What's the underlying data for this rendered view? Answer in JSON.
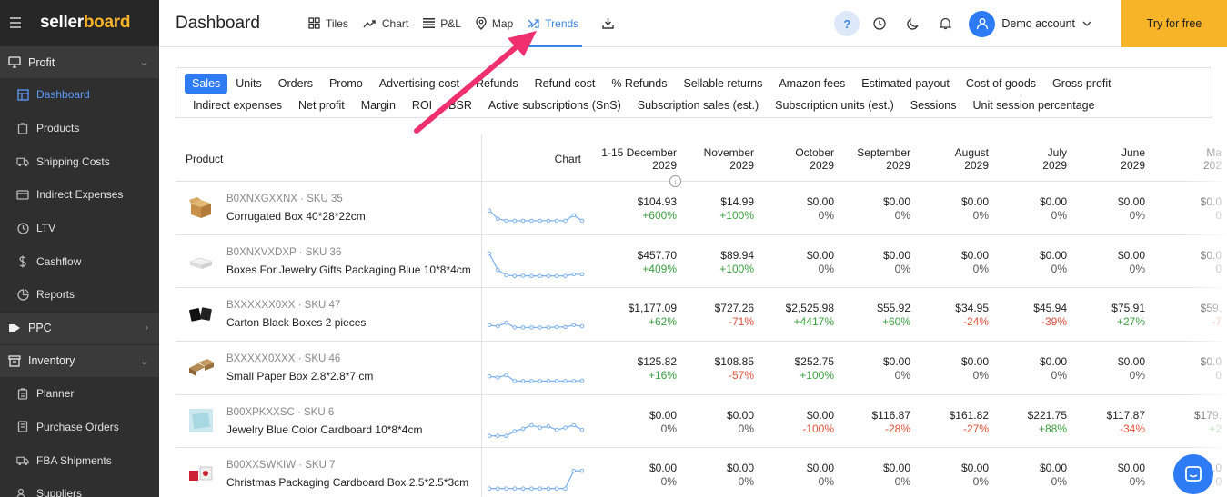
{
  "brand": {
    "logo_a": "seller",
    "logo_b": "board"
  },
  "sidebar": {
    "items": [
      {
        "type": "group",
        "label": "Profit",
        "icon": "monitor-icon",
        "chev": "⌄"
      },
      {
        "type": "item",
        "label": "Dashboard",
        "icon": "dashboard-icon",
        "active": true
      },
      {
        "type": "item",
        "label": "Products",
        "icon": "products-icon"
      },
      {
        "type": "item",
        "label": "Shipping Costs",
        "icon": "truck-icon"
      },
      {
        "type": "item",
        "label": "Indirect Expenses",
        "icon": "card-icon"
      },
      {
        "type": "item",
        "label": "LTV",
        "icon": "clock-icon"
      },
      {
        "type": "item",
        "label": "Cashflow",
        "icon": "dollar-icon"
      },
      {
        "type": "item",
        "label": "Reports",
        "icon": "reports-icon"
      },
      {
        "type": "group",
        "label": "PPC",
        "icon": "tag-icon",
        "chev": "›"
      },
      {
        "type": "group",
        "label": "Inventory",
        "icon": "inventory-icon",
        "chev": "⌄"
      },
      {
        "type": "item",
        "label": "Planner",
        "icon": "planner-icon"
      },
      {
        "type": "item",
        "label": "Purchase Orders",
        "icon": "orders-icon"
      },
      {
        "type": "item",
        "label": "FBA Shipments",
        "icon": "shipment-icon"
      },
      {
        "type": "item",
        "label": "Suppliers",
        "icon": "suppliers-icon"
      }
    ]
  },
  "header": {
    "title": "Dashboard",
    "tabs": [
      {
        "label": "Tiles",
        "icon": "tiles-icon"
      },
      {
        "label": "Chart",
        "icon": "chart-icon"
      },
      {
        "label": "P&L",
        "icon": "list-icon"
      },
      {
        "label": "Map",
        "icon": "map-pin-icon"
      },
      {
        "label": "Trends",
        "icon": "trends-icon",
        "active": true
      }
    ],
    "help": "?",
    "account": "Demo account",
    "try_label": "Try for free"
  },
  "metrics": {
    "row1": [
      "Sales",
      "Units",
      "Orders",
      "Promo",
      "Advertising cost",
      "Refunds",
      "Refund cost",
      "% Refunds",
      "Sellable returns",
      "Amazon fees",
      "Estimated payout",
      "Cost of goods",
      "Gross profit"
    ],
    "row2": [
      "Indirect expenses",
      "Net profit",
      "Margin",
      "ROI",
      "BSR",
      "Active subscriptions (SnS)",
      "Subscription sales (est.)",
      "Subscription units (est.)",
      "Sessions",
      "Unit session percentage"
    ],
    "active": "Sales"
  },
  "table": {
    "product_header": "Product",
    "chart_header": "Chart",
    "columns": [
      {
        "l1": "1-15 December",
        "l2": "2029"
      },
      {
        "l1": "November",
        "l2": "2029"
      },
      {
        "l1": "October",
        "l2": "2029"
      },
      {
        "l1": "September",
        "l2": "2029"
      },
      {
        "l1": "August",
        "l2": "2029"
      },
      {
        "l1": "July",
        "l2": "2029"
      },
      {
        "l1": "June",
        "l2": "2029"
      },
      {
        "l1": "Ma",
        "l2": "202"
      }
    ],
    "rows": [
      {
        "meta": "B0XNXGXXNX · SKU 35",
        "name": "Corrugated Box 40*28*22cm",
        "img": "box",
        "spark": [
          0.55,
          0.2,
          0.12,
          0.12,
          0.12,
          0.12,
          0.12,
          0.12,
          0.12,
          0.12,
          0.35,
          0.12
        ],
        "cells": [
          [
            "$104.93",
            "+600%"
          ],
          [
            "$14.99",
            "+100%"
          ],
          [
            "$0.00",
            "0%"
          ],
          [
            "$0.00",
            "0%"
          ],
          [
            "$0.00",
            "0%"
          ],
          [
            "$0.00",
            "0%"
          ],
          [
            "$0.00",
            "0%"
          ],
          [
            "$0.0",
            "0"
          ]
        ]
      },
      {
        "meta": "B0XNXVXDXP · SKU 36",
        "name": "Boxes For Jewelry Gifts Packaging Blue 10*8*4cm",
        "img": "white",
        "spark": [
          1.0,
          0.3,
          0.08,
          0.05,
          0.06,
          0.05,
          0.05,
          0.05,
          0.05,
          0.05,
          0.12,
          0.12
        ],
        "cells": [
          [
            "$457.70",
            "+409%"
          ],
          [
            "$89.94",
            "+100%"
          ],
          [
            "$0.00",
            "0%"
          ],
          [
            "$0.00",
            "0%"
          ],
          [
            "$0.00",
            "0%"
          ],
          [
            "$0.00",
            "0%"
          ],
          [
            "$0.00",
            "0%"
          ],
          [
            "$0.0",
            "0"
          ]
        ]
      },
      {
        "meta": "BXXXXXX0XX · SKU 47",
        "name": "Carton Black Boxes 2 pieces",
        "img": "black",
        "spark": [
          0.2,
          0.15,
          0.3,
          0.1,
          0.1,
          0.1,
          0.1,
          0.1,
          0.12,
          0.12,
          0.2,
          0.15
        ],
        "cells": [
          [
            "$1,177.09",
            "+62%"
          ],
          [
            "$727.26",
            "-71%"
          ],
          [
            "$2,525.98",
            "+4417%"
          ],
          [
            "$55.92",
            "+60%"
          ],
          [
            "$34.95",
            "-24%"
          ],
          [
            "$45.94",
            "-39%"
          ],
          [
            "$75.91",
            "+27%"
          ],
          [
            "$59.",
            "-7"
          ]
        ]
      },
      {
        "meta": "BXXXXX0XXX · SKU 46",
        "name": "Small Paper Box 2.8*2.8*7 cm",
        "img": "kraft",
        "spark": [
          0.3,
          0.25,
          0.35,
          0.1,
          0.1,
          0.1,
          0.1,
          0.1,
          0.1,
          0.1,
          0.1,
          0.12
        ],
        "cells": [
          [
            "$125.82",
            "+16%"
          ],
          [
            "$108.85",
            "-57%"
          ],
          [
            "$252.75",
            "+100%"
          ],
          [
            "$0.00",
            "0%"
          ],
          [
            "$0.00",
            "0%"
          ],
          [
            "$0.00",
            "0%"
          ],
          [
            "$0.00",
            "0%"
          ],
          [
            "$0.0",
            "0"
          ]
        ]
      },
      {
        "meta": "B00XPKXXSC · SKU 6",
        "name": "Jewelry Blue Color Cardboard 10*8*4cm",
        "img": "blue",
        "spark": [
          0.05,
          0.05,
          0.05,
          0.25,
          0.35,
          0.5,
          0.4,
          0.45,
          0.3,
          0.4,
          0.5,
          0.3
        ],
        "cells": [
          [
            "$0.00",
            "0%"
          ],
          [
            "$0.00",
            "0%"
          ],
          [
            "$0.00",
            "-100%"
          ],
          [
            "$116.87",
            "-28%"
          ],
          [
            "$161.82",
            "-27%"
          ],
          [
            "$221.75",
            "+88%"
          ],
          [
            "$117.87",
            "-34%"
          ],
          [
            "$179.",
            "+2"
          ]
        ]
      },
      {
        "meta": "B00XXSWKIW · SKU 7",
        "name": "Christmas Packaging Cardboard Box 2.5*2.5*3cm",
        "img": "xmas",
        "spark": [
          0.05,
          0.05,
          0.05,
          0.05,
          0.05,
          0.05,
          0.05,
          0.05,
          0.05,
          0.05,
          0.8,
          0.8
        ],
        "cells": [
          [
            "$0.00",
            "0%"
          ],
          [
            "$0.00",
            "0%"
          ],
          [
            "$0.00",
            "0%"
          ],
          [
            "$0.00",
            "0%"
          ],
          [
            "$0.00",
            "0%"
          ],
          [
            "$0.00",
            "0%"
          ],
          [
            "$0.00",
            "0%"
          ],
          [
            "$0.0",
            "0"
          ]
        ]
      }
    ]
  },
  "colors": {
    "accent": "#2d7cf6",
    "try": "#f7b429",
    "arrow": "#f0306e",
    "spark": "#7fb2f0"
  }
}
